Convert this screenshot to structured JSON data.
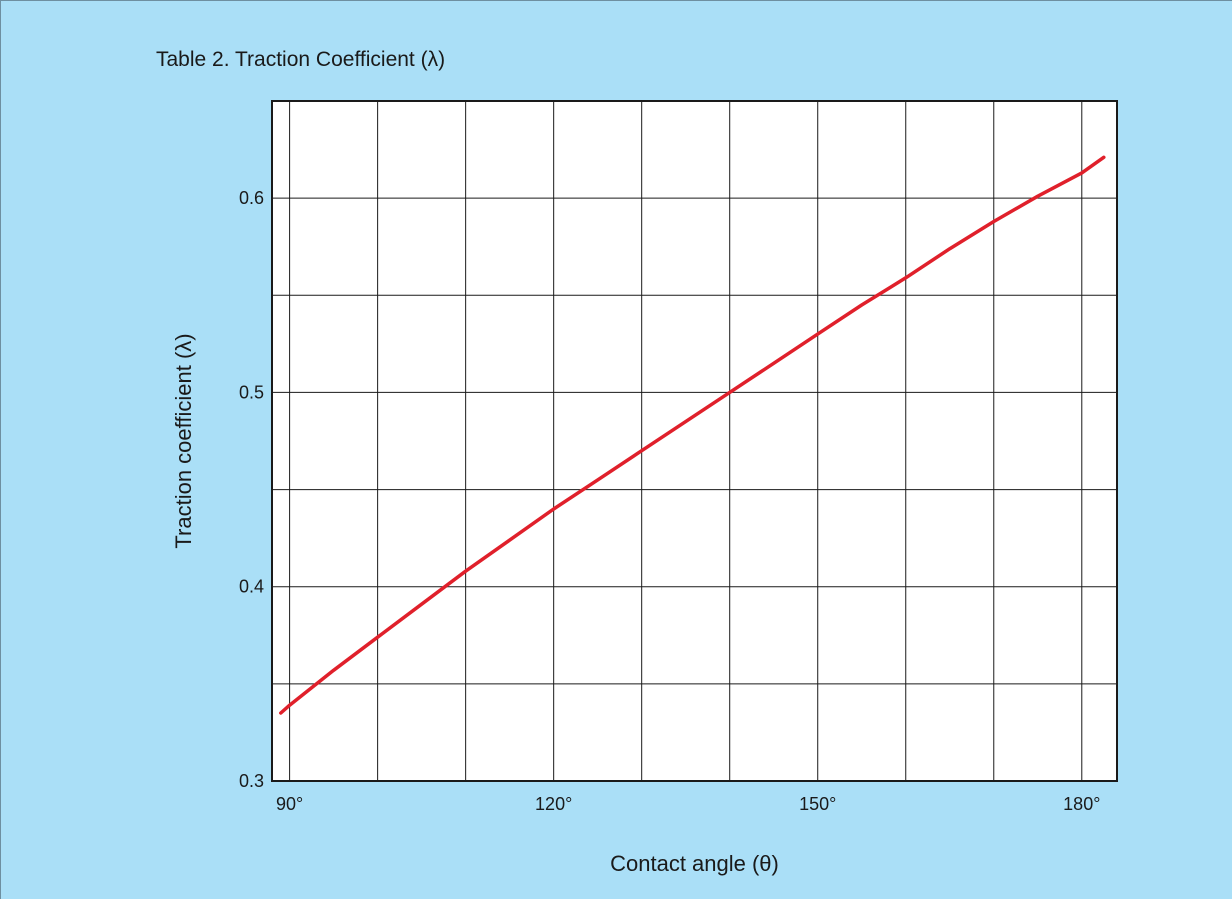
{
  "chart_data": {
    "type": "line",
    "title": "Table 2. Traction Coefficient (λ)",
    "xlabel": "Contact angle (θ)",
    "ylabel": "Traction coefficient (λ)",
    "xlim": [
      88,
      184
    ],
    "ylim": [
      0.3,
      0.65
    ],
    "x_ticks": [
      90,
      120,
      150,
      180
    ],
    "x_tick_labels": [
      "90°",
      "120°",
      "150°",
      "180°"
    ],
    "y_ticks": [
      0.3,
      0.4,
      0.5,
      0.6
    ],
    "y_tick_labels": [
      "0.3",
      "0.4",
      "0.5",
      "0.6"
    ],
    "grid": true,
    "series": [
      {
        "color": "#e0202b",
        "x": [
          89,
          90,
          95,
          100,
          105,
          110,
          115,
          120,
          125,
          130,
          135,
          140,
          145,
          150,
          155,
          160,
          165,
          170,
          175,
          180,
          182.5
        ],
        "y": [
          0.335,
          0.339,
          0.357,
          0.374,
          0.391,
          0.408,
          0.424,
          0.44,
          0.455,
          0.47,
          0.485,
          0.5,
          0.515,
          0.53,
          0.545,
          0.559,
          0.574,
          0.588,
          0.601,
          0.613,
          0.621
        ]
      }
    ]
  }
}
